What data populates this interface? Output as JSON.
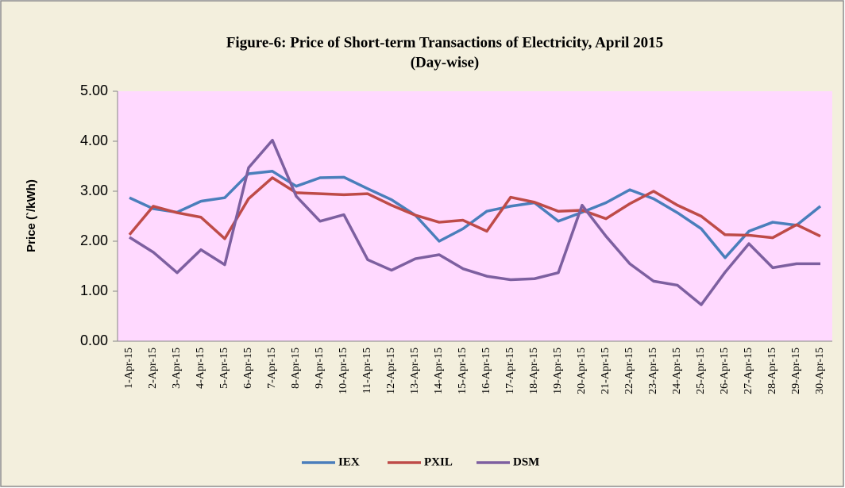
{
  "chart_data": {
    "type": "line",
    "title": "Figure-6: Price of Short-term Transactions of Electricity, April 2015",
    "subtitle": "(Day-wise)",
    "y_label": "Price (`/kWh)",
    "categories": [
      "1-Apr-15",
      "2-Apr-15",
      "3-Apr-15",
      "4-Apr-15",
      "5-Apr-15",
      "6-Apr-15",
      "7-Apr-15",
      "8-Apr-15",
      "9-Apr-15",
      "10-Apr-15",
      "11-Apr-15",
      "12-Apr-15",
      "13-Apr-15",
      "14-Apr-15",
      "15-Apr-15",
      "16-Apr-15",
      "17-Apr-15",
      "18-Apr-15",
      "19-Apr-15",
      "20-Apr-15",
      "21-Apr-15",
      "22-Apr-15",
      "23-Apr-15",
      "24-Apr-15",
      "25-Apr-15",
      "26-Apr-15",
      "27-Apr-15",
      "28-Apr-15",
      "29-Apr-15",
      "30-Apr-15"
    ],
    "series": [
      {
        "name": "IEX",
        "color": "#4a7ebb",
        "values": [
          2.87,
          2.65,
          2.58,
          2.8,
          2.87,
          3.35,
          3.4,
          3.1,
          3.27,
          3.28,
          3.05,
          2.83,
          2.52,
          2.0,
          2.25,
          2.6,
          2.7,
          2.77,
          2.4,
          2.58,
          2.77,
          3.03,
          2.85,
          2.57,
          2.25,
          1.67,
          2.2,
          2.38,
          2.32,
          2.7
        ]
      },
      {
        "name": "PXIL",
        "color": "#be4b48",
        "values": [
          2.13,
          2.7,
          2.57,
          2.48,
          2.05,
          2.85,
          3.27,
          2.97,
          2.95,
          2.93,
          2.95,
          2.72,
          2.52,
          2.38,
          2.42,
          2.2,
          2.88,
          2.78,
          2.6,
          2.62,
          2.45,
          2.75,
          3.0,
          2.72,
          2.5,
          2.13,
          2.12,
          2.07,
          2.33,
          2.1
        ]
      },
      {
        "name": "DSM",
        "color": "#7d5fa0",
        "values": [
          2.08,
          1.78,
          1.37,
          1.83,
          1.53,
          3.47,
          4.02,
          2.9,
          2.4,
          2.53,
          1.63,
          1.42,
          1.65,
          1.73,
          1.45,
          1.3,
          1.23,
          1.25,
          1.37,
          2.72,
          2.1,
          1.55,
          1.2,
          1.12,
          0.73,
          1.38,
          1.95,
          1.47,
          1.55,
          1.55
        ]
      }
    ],
    "ylim": [
      0,
      5
    ],
    "yticks": [
      {
        "value": 0,
        "label": "0.00"
      },
      {
        "value": 1,
        "label": "1.00"
      },
      {
        "value": 2,
        "label": "2.00"
      },
      {
        "value": 3,
        "label": "3.00"
      },
      {
        "value": 4,
        "label": "4.00"
      },
      {
        "value": 5,
        "label": "5.00"
      }
    ],
    "grid": false,
    "legend": "bottom",
    "plot_background": "#ffd9ff",
    "background": "#f3efdd"
  }
}
